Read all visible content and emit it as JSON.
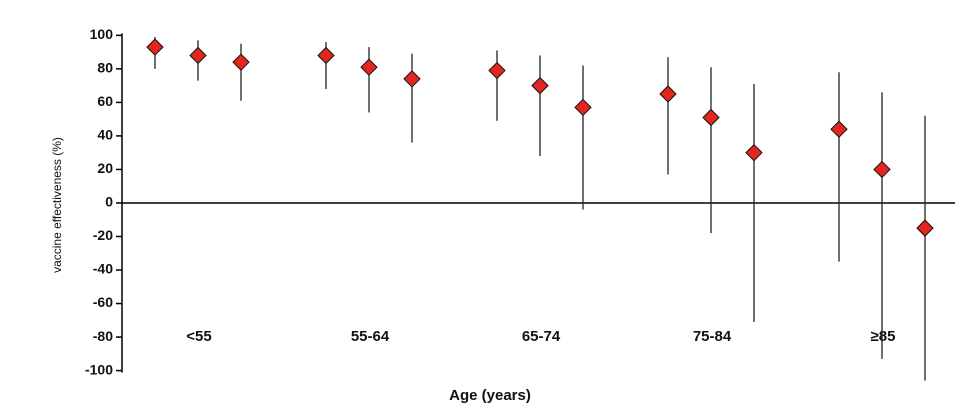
{
  "chart_data": {
    "type": "point-range",
    "y_label": "vaccine effectiveness (%)",
    "x_label": "Age (years)",
    "group_labels": [
      "<55",
      "55-64",
      "65-74",
      "75-84",
      "≥85"
    ],
    "categories": [
      null,
      null,
      null,
      null,
      null,
      null,
      null,
      null,
      null,
      null,
      null,
      null,
      null,
      null,
      null
    ],
    "series": [
      {
        "color": "#e3261f",
        "values": [
          93,
          88,
          84,
          88,
          81,
          74,
          79,
          70,
          57,
          65,
          51,
          30,
          44,
          20,
          -15
        ],
        "lower": [
          80,
          73,
          61,
          68,
          54,
          36,
          49,
          28,
          -4,
          17,
          -18,
          -71,
          -35,
          -93,
          -106
        ],
        "upper": [
          99,
          97,
          95,
          96,
          93,
          89,
          91,
          88,
          82,
          87,
          81,
          71,
          78,
          66,
          52
        ]
      }
    ],
    "ylim": [
      -108,
      102
    ],
    "yticks": [
      -100,
      -80,
      -60,
      -40,
      -20,
      0,
      20,
      40,
      60,
      80,
      100
    ]
  }
}
